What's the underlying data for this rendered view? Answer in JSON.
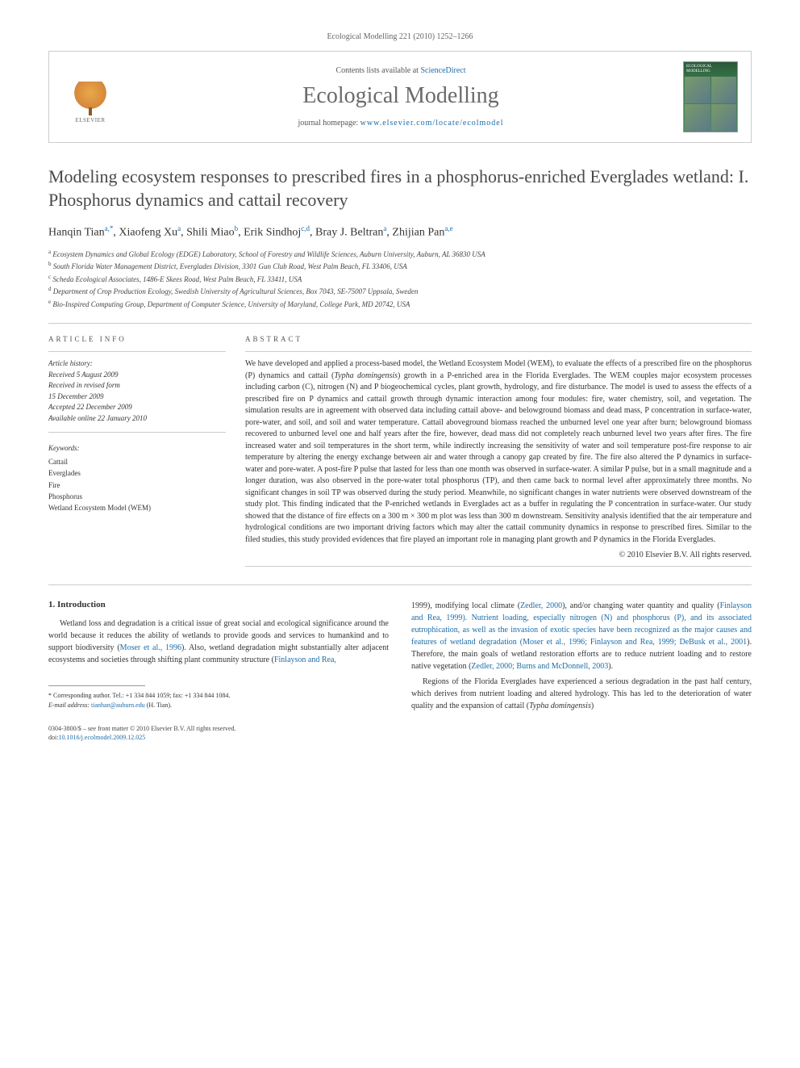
{
  "header_bar": "Ecological Modelling 221 (2010) 1252–1266",
  "journal_box": {
    "contents_prefix": "Contents lists available at ",
    "contents_link": "ScienceDirect",
    "journal_title": "Ecological Modelling",
    "homepage_prefix": "journal homepage: ",
    "homepage_link": "www.elsevier.com/locate/ecolmodel",
    "publisher": "ELSEVIER",
    "cover_label": "ECOLOGICAL MODELLING"
  },
  "article": {
    "title": "Modeling ecosystem responses to prescribed fires in a phosphorus-enriched Everglades wetland: I. Phosphorus dynamics and cattail recovery",
    "authors_html": "Hanqin Tian<sup>a,*</sup>, Xiaofeng Xu<sup>a</sup>, Shili Miao<sup>b</sup>, Erik Sindhoj<sup>c,d</sup>, Bray J. Beltran<sup>a</sup>, Zhijian Pan<sup>a,e</sup>",
    "affiliations": [
      "a Ecosystem Dynamics and Global Ecology (EDGE) Laboratory, School of Forestry and Wildlife Sciences, Auburn University, Auburn, AL 36830 USA",
      "b South Florida Water Management District, Everglades Division, 3301 Gun Club Road, West Palm Beach, FL 33406, USA",
      "c Scheda Ecological Associates, 1486-E Skees Road, West Palm Beach, FL 33411, USA",
      "d Department of Crop Production Ecology, Swedish University of Agricultural Sciences, Box 7043, SE-75007 Uppsala, Sweden",
      "e Bio-Inspired Computing Group, Department of Computer Science, University of Maryland, College Park, MD 20742, USA"
    ],
    "info_header": "ARTICLE INFO",
    "abstract_header": "ABSTRACT",
    "history_label": "Article history:",
    "history": [
      "Received 5 August 2009",
      "Received in revised form",
      "15 December 2009",
      "Accepted 22 December 2009",
      "Available online 22 January 2010"
    ],
    "keywords_label": "Keywords:",
    "keywords": [
      "Cattail",
      "Everglades",
      "Fire",
      "Phosphorus",
      "Wetland Ecosystem Model (WEM)"
    ],
    "abstract": "We have developed and applied a process-based model, the Wetland Ecosystem Model (WEM), to evaluate the effects of a prescribed fire on the phosphorus (P) dynamics and cattail (Typha domingensis) growth in a P-enriched area in the Florida Everglades. The WEM couples major ecosystem processes including carbon (C), nitrogen (N) and P biogeochemical cycles, plant growth, hydrology, and fire disturbance. The model is used to assess the effects of a prescribed fire on P dynamics and cattail growth through dynamic interaction among four modules: fire, water chemistry, soil, and vegetation. The simulation results are in agreement with observed data including cattail above- and belowground biomass and dead mass, P concentration in surface-water, pore-water, and soil, and soil and water temperature. Cattail aboveground biomass reached the unburned level one year after burn; belowground biomass recovered to unburned level one and half years after the fire, however, dead mass did not completely reach unburned level two years after fires. The fire increased water and soil temperatures in the short term, while indirectly increasing the sensitivity of water and soil temperature post-fire response to air temperature by altering the energy exchange between air and water through a canopy gap created by fire. The fire also altered the P dynamics in surface-water and pore-water. A post-fire P pulse that lasted for less than one month was observed in surface-water. A similar P pulse, but in a small magnitude and a longer duration, was also observed in the pore-water total phosphorus (TP), and then came back to normal level after approximately three months. No significant changes in soil TP was observed during the study period. Meanwhile, no significant changes in water nutrients were observed downstream of the study plot. This finding indicated that the P-enriched wetlands in Everglades act as a buffer in regulating the P concentration in surface-water. Our study showed that the distance of fire effects on a 300 m × 300 m plot was less than 300 m downstream. Sensitivity analysis identified that the air temperature and hydrological conditions are two important driving factors which may alter the cattail community dynamics in response to prescribed fires. Similar to the filed studies, this study provided evidences that fire played an important role in managing plant growth and P dynamics in the Florida Everglades.",
    "copyright": "© 2010 Elsevier B.V. All rights reserved."
  },
  "body": {
    "intro_heading": "1. Introduction",
    "col1_p1": "Wetland loss and degradation is a critical issue of great social and ecological significance around the world because it reduces the ability of wetlands to provide goods and services to humankind and to support biodiversity (Moser et al., 1996). Also, wetland degradation might substantially alter adjacent ecosystems and societies through shifting plant community structure (Finlayson and Rea,",
    "col2_p1": "1999), modifying local climate (Zedler, 2000), and/or changing water quantity and quality (Finlayson and Rea, 1999). Nutrient loading, especially nitrogen (N) and phosphorus (P), and its associated eutrophication, as well as the invasion of exotic species have been recognized as the major causes and features of wetland degradation (Moser et al., 1996; Finlayson and Rea, 1999; DeBusk et al., 2001). Therefore, the main goals of wetland restoration efforts are to reduce nutrient loading and to restore native vegetation (Zedler, 2000; Burns and McDonnell, 2003).",
    "col2_p2": "Regions of the Florida Everglades have experienced a serious degradation in the past half century, which derives from nutrient loading and altered hydrology. This has led to the deterioration of water quality and the expansion of cattail (Typha domingensis)"
  },
  "footnote": {
    "corr": "* Corresponding author. Tel.: +1 334 844 1059; fax: +1 334 844 1084.",
    "email_label": "E-mail address: ",
    "email": "tianhan@auburn.edu",
    "email_suffix": " (H. Tian)."
  },
  "footer": {
    "line1": "0304-3800/$ – see front matter © 2010 Elsevier B.V. All rights reserved.",
    "doi_prefix": "doi:",
    "doi": "10.1016/j.ecolmodel.2009.12.025"
  },
  "colors": {
    "link": "#1b6ca8",
    "title_gray": "#4a4a4a",
    "text": "#333333",
    "border": "#cccccc"
  }
}
